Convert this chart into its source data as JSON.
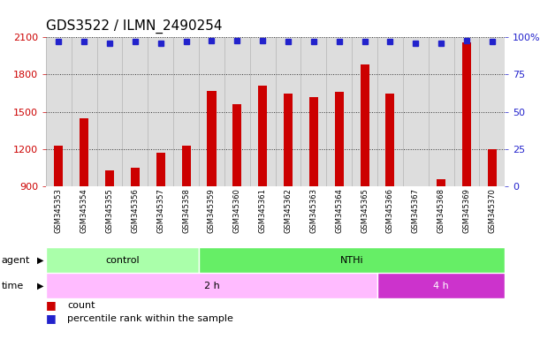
{
  "title": "GDS3522 / ILMN_2490254",
  "samples": [
    "GSM345353",
    "GSM345354",
    "GSM345355",
    "GSM345356",
    "GSM345357",
    "GSM345358",
    "GSM345359",
    "GSM345360",
    "GSM345361",
    "GSM345362",
    "GSM345363",
    "GSM345364",
    "GSM345365",
    "GSM345366",
    "GSM345367",
    "GSM345368",
    "GSM345369",
    "GSM345370"
  ],
  "counts": [
    1230,
    1450,
    1030,
    1050,
    1170,
    1230,
    1670,
    1560,
    1710,
    1650,
    1620,
    1660,
    1880,
    1650,
    890,
    960,
    2060,
    1200
  ],
  "percentile_ranks": [
    97,
    97,
    96,
    97,
    96,
    97,
    98,
    98,
    98,
    97,
    97,
    97,
    97,
    97,
    96,
    96,
    98,
    97
  ],
  "bar_color": "#cc0000",
  "dot_color": "#2222cc",
  "ylim_left": [
    900,
    2100
  ],
  "ylim_right": [
    0,
    100
  ],
  "yticks_left": [
    900,
    1200,
    1500,
    1800,
    2100
  ],
  "yticks_right": [
    0,
    25,
    50,
    75,
    100
  ],
  "right_tick_labels": [
    "0",
    "25",
    "50",
    "75",
    "100%"
  ],
  "control_color": "#aaffaa",
  "nthi_color": "#66ee66",
  "time2_color": "#ffbbff",
  "time4_color": "#cc33cc",
  "bg_color": "#ffffff",
  "plot_bg_color": "#dddddd",
  "xtick_bg_color": "#cccccc",
  "grid_color": "#000000",
  "title_fontsize": 11,
  "axis_color_left": "#cc0000",
  "axis_color_right": "#2222cc",
  "bar_width": 0.35
}
